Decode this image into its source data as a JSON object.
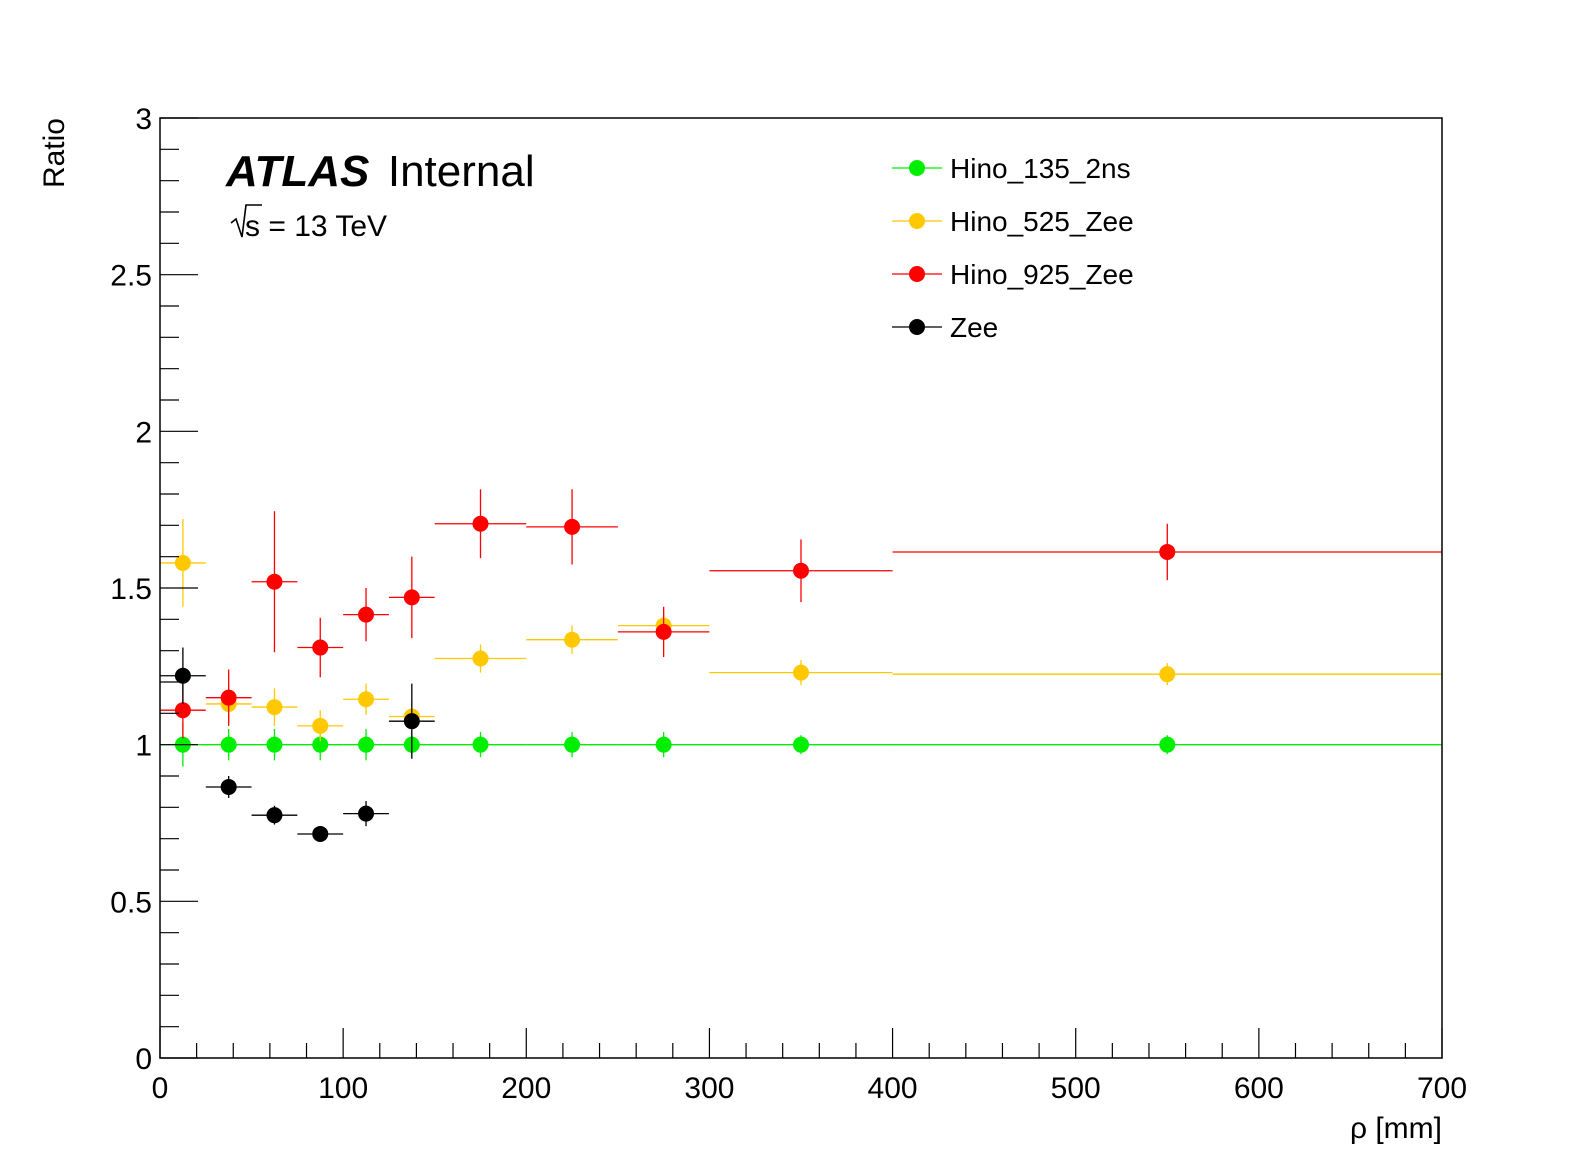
{
  "chart_data": {
    "type": "scatter",
    "xlabel": "ρ [mm]",
    "ylabel": "Ratio",
    "xlim": [
      0,
      700
    ],
    "ylim": [
      0,
      3
    ],
    "x_ticks": [
      0,
      100,
      200,
      300,
      400,
      500,
      600,
      700
    ],
    "y_ticks": [
      0,
      0.5,
      1,
      1.5,
      2,
      2.5,
      3
    ],
    "x_tick_labels": [
      "0",
      "100",
      "200",
      "300",
      "400",
      "500",
      "600",
      "700"
    ],
    "y_tick_labels": [
      "0",
      "0.5",
      "1",
      "1.5",
      "2",
      "2.5",
      "3"
    ],
    "grid": false,
    "legend_position": "top-right",
    "annotations": {
      "experiment": "ATLAS",
      "status": "Internal",
      "energy_sqrt": "s",
      "energy_rest": " = 13 TeV"
    },
    "series": [
      {
        "name": "Hino_135_2ns",
        "color": "#00ee00",
        "points": [
          {
            "x": 12.5,
            "xlo": 0,
            "xhi": 25,
            "y": 1.0,
            "yerr": 0.07
          },
          {
            "x": 37.5,
            "xlo": 25,
            "xhi": 50,
            "y": 1.0,
            "yerr": 0.05
          },
          {
            "x": 62.5,
            "xlo": 50,
            "xhi": 75,
            "y": 1.0,
            "yerr": 0.05
          },
          {
            "x": 87.5,
            "xlo": 75,
            "xhi": 100,
            "y": 1.0,
            "yerr": 0.05
          },
          {
            "x": 112.5,
            "xlo": 100,
            "xhi": 125,
            "y": 1.0,
            "yerr": 0.05
          },
          {
            "x": 137.5,
            "xlo": 125,
            "xhi": 150,
            "y": 1.0,
            "yerr": 0.04
          },
          {
            "x": 175,
            "xlo": 150,
            "xhi": 200,
            "y": 1.0,
            "yerr": 0.04
          },
          {
            "x": 225,
            "xlo": 200,
            "xhi": 250,
            "y": 1.0,
            "yerr": 0.04
          },
          {
            "x": 275,
            "xlo": 250,
            "xhi": 300,
            "y": 1.0,
            "yerr": 0.04
          },
          {
            "x": 350,
            "xlo": 300,
            "xhi": 400,
            "y": 1.0,
            "yerr": 0.03
          },
          {
            "x": 550,
            "xlo": 400,
            "xhi": 700,
            "y": 1.0,
            "yerr": 0.03
          }
        ]
      },
      {
        "name": "Hino_525_Zee",
        "color": "#ffc800",
        "points": [
          {
            "x": 12.5,
            "xlo": 0,
            "xhi": 25,
            "y": 1.58,
            "yerr": 0.14
          },
          {
            "x": 37.5,
            "xlo": 25,
            "xhi": 50,
            "y": 1.13,
            "yerr": 0.06
          },
          {
            "x": 62.5,
            "xlo": 50,
            "xhi": 75,
            "y": 1.12,
            "yerr": 0.06
          },
          {
            "x": 87.5,
            "xlo": 75,
            "xhi": 100,
            "y": 1.06,
            "yerr": 0.05
          },
          {
            "x": 112.5,
            "xlo": 100,
            "xhi": 125,
            "y": 1.145,
            "yerr": 0.05
          },
          {
            "x": 137.5,
            "xlo": 125,
            "xhi": 150,
            "y": 1.09,
            "yerr": 0.05
          },
          {
            "x": 175,
            "xlo": 150,
            "xhi": 200,
            "y": 1.275,
            "yerr": 0.045
          },
          {
            "x": 225,
            "xlo": 200,
            "xhi": 250,
            "y": 1.335,
            "yerr": 0.045
          },
          {
            "x": 275,
            "xlo": 250,
            "xhi": 300,
            "y": 1.38,
            "yerr": 0.045
          },
          {
            "x": 350,
            "xlo": 300,
            "xhi": 400,
            "y": 1.23,
            "yerr": 0.04
          },
          {
            "x": 550,
            "xlo": 400,
            "xhi": 700,
            "y": 1.225,
            "yerr": 0.035
          }
        ]
      },
      {
        "name": "Hino_925_Zee",
        "color": "#ff0000",
        "points": [
          {
            "x": 12.5,
            "xlo": 0,
            "xhi": 25,
            "y": 1.11,
            "yerr": 0.09
          },
          {
            "x": 37.5,
            "xlo": 25,
            "xhi": 50,
            "y": 1.15,
            "yerr": 0.09
          },
          {
            "x": 62.5,
            "xlo": 50,
            "xhi": 75,
            "y": 1.52,
            "yerr": 0.225
          },
          {
            "x": 87.5,
            "xlo": 75,
            "xhi": 100,
            "y": 1.31,
            "yerr": 0.095
          },
          {
            "x": 112.5,
            "xlo": 100,
            "xhi": 125,
            "y": 1.415,
            "yerr": 0.085
          },
          {
            "x": 137.5,
            "xlo": 125,
            "xhi": 150,
            "y": 1.47,
            "yerr": 0.13
          },
          {
            "x": 175,
            "xlo": 150,
            "xhi": 200,
            "y": 1.705,
            "yerr": 0.11
          },
          {
            "x": 225,
            "xlo": 200,
            "xhi": 250,
            "y": 1.695,
            "yerr": 0.12
          },
          {
            "x": 275,
            "xlo": 250,
            "xhi": 300,
            "y": 1.36,
            "yerr": 0.08
          },
          {
            "x": 350,
            "xlo": 300,
            "xhi": 400,
            "y": 1.555,
            "yerr": 0.1
          },
          {
            "x": 550,
            "xlo": 400,
            "xhi": 700,
            "y": 1.615,
            "yerr": 0.09
          }
        ]
      },
      {
        "name": "Zee",
        "color": "#000000",
        "points": [
          {
            "x": 12.5,
            "xlo": 0,
            "xhi": 25,
            "y": 1.22,
            "yerr": 0.09
          },
          {
            "x": 37.5,
            "xlo": 25,
            "xhi": 50,
            "y": 0.865,
            "yerr": 0.035
          },
          {
            "x": 62.5,
            "xlo": 50,
            "xhi": 75,
            "y": 0.775,
            "yerr": 0.03
          },
          {
            "x": 87.5,
            "xlo": 75,
            "xhi": 100,
            "y": 0.715,
            "yerr": 0.025
          },
          {
            "x": 112.5,
            "xlo": 100,
            "xhi": 125,
            "y": 0.78,
            "yerr": 0.04
          },
          {
            "x": 137.5,
            "xlo": 125,
            "xhi": 150,
            "y": 1.075,
            "yerr": 0.12
          }
        ]
      }
    ]
  }
}
